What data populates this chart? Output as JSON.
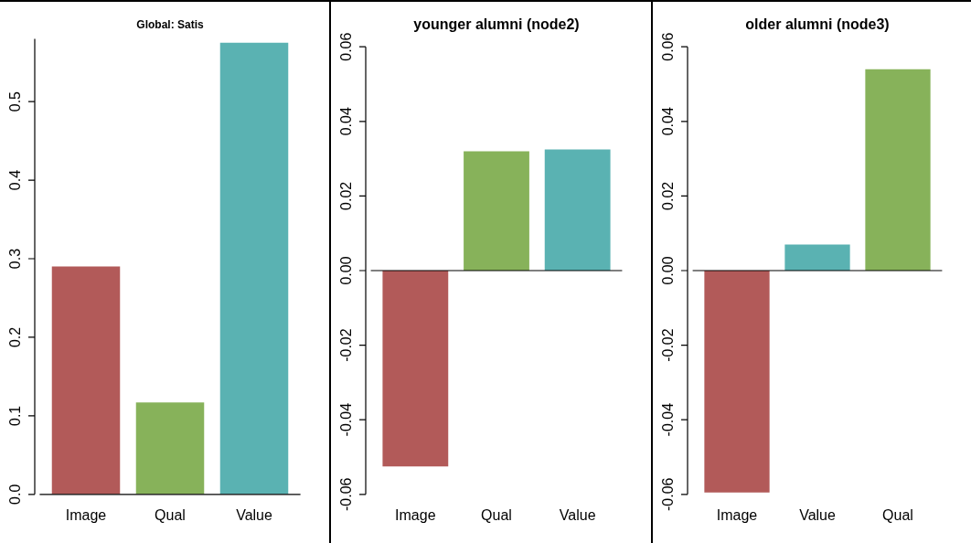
{
  "chart_data": [
    {
      "type": "bar",
      "title": "Global: Satis",
      "categories": [
        "Image",
        "Qual",
        "Value"
      ],
      "values": [
        0.29,
        0.117,
        0.575
      ],
      "colors": [
        "#b25a59",
        "#87b25a",
        "#5ab2b2"
      ],
      "ylim": [
        0,
        0.58
      ],
      "yticks": [
        {
          "value": 0,
          "label": "0.0"
        },
        0.1,
        0.2,
        0.3,
        0.4,
        0.5
      ],
      "grid": false,
      "legend": false
    },
    {
      "type": "bar",
      "title": "younger alumni (node2)",
      "categories": [
        "Image",
        "Qual",
        "Value"
      ],
      "values": [
        -0.0525,
        0.032,
        0.0325
      ],
      "colors": [
        "#b25a59",
        "#87b25a",
        "#5ab2b2"
      ],
      "ylim": [
        -0.06,
        0.06
      ],
      "yticks": [
        {
          "value": -0.06,
          "label": "-0.06"
        },
        {
          "value": -0.04,
          "label": "-0.04"
        },
        {
          "value": -0.02,
          "label": "-0.02"
        },
        {
          "value": 0,
          "label": "0.00"
        },
        {
          "value": 0.02,
          "label": "0.02"
        },
        {
          "value": 0.04,
          "label": "0.04"
        },
        {
          "value": 0.06,
          "label": "0.06"
        }
      ],
      "ref_lines": [
        {
          "axis": "y",
          "value": 0,
          "color": "#000000"
        }
      ],
      "grid": false,
      "legend": false
    },
    {
      "type": "bar",
      "title": "older alumni (node3)",
      "categories": [
        "Image",
        "Value",
        "Qual"
      ],
      "values": [
        -0.0595,
        0.007,
        0.054
      ],
      "colors": [
        "#b25a59",
        "#5ab2b2",
        "#87b25a"
      ],
      "ylim": [
        -0.06,
        0.06
      ],
      "yticks": [
        {
          "value": -0.06,
          "label": "-0.06"
        },
        {
          "value": -0.04,
          "label": "-0.04"
        },
        {
          "value": -0.02,
          "label": "-0.02"
        },
        {
          "value": 0,
          "label": "0.00"
        },
        {
          "value": 0.02,
          "label": "0.02"
        },
        {
          "value": 0.04,
          "label": "0.04"
        },
        {
          "value": 0.06,
          "label": "0.06"
        }
      ],
      "ref_lines": [
        {
          "axis": "y",
          "value": 0,
          "color": "#000000"
        }
      ],
      "grid": false,
      "legend": false
    }
  ]
}
